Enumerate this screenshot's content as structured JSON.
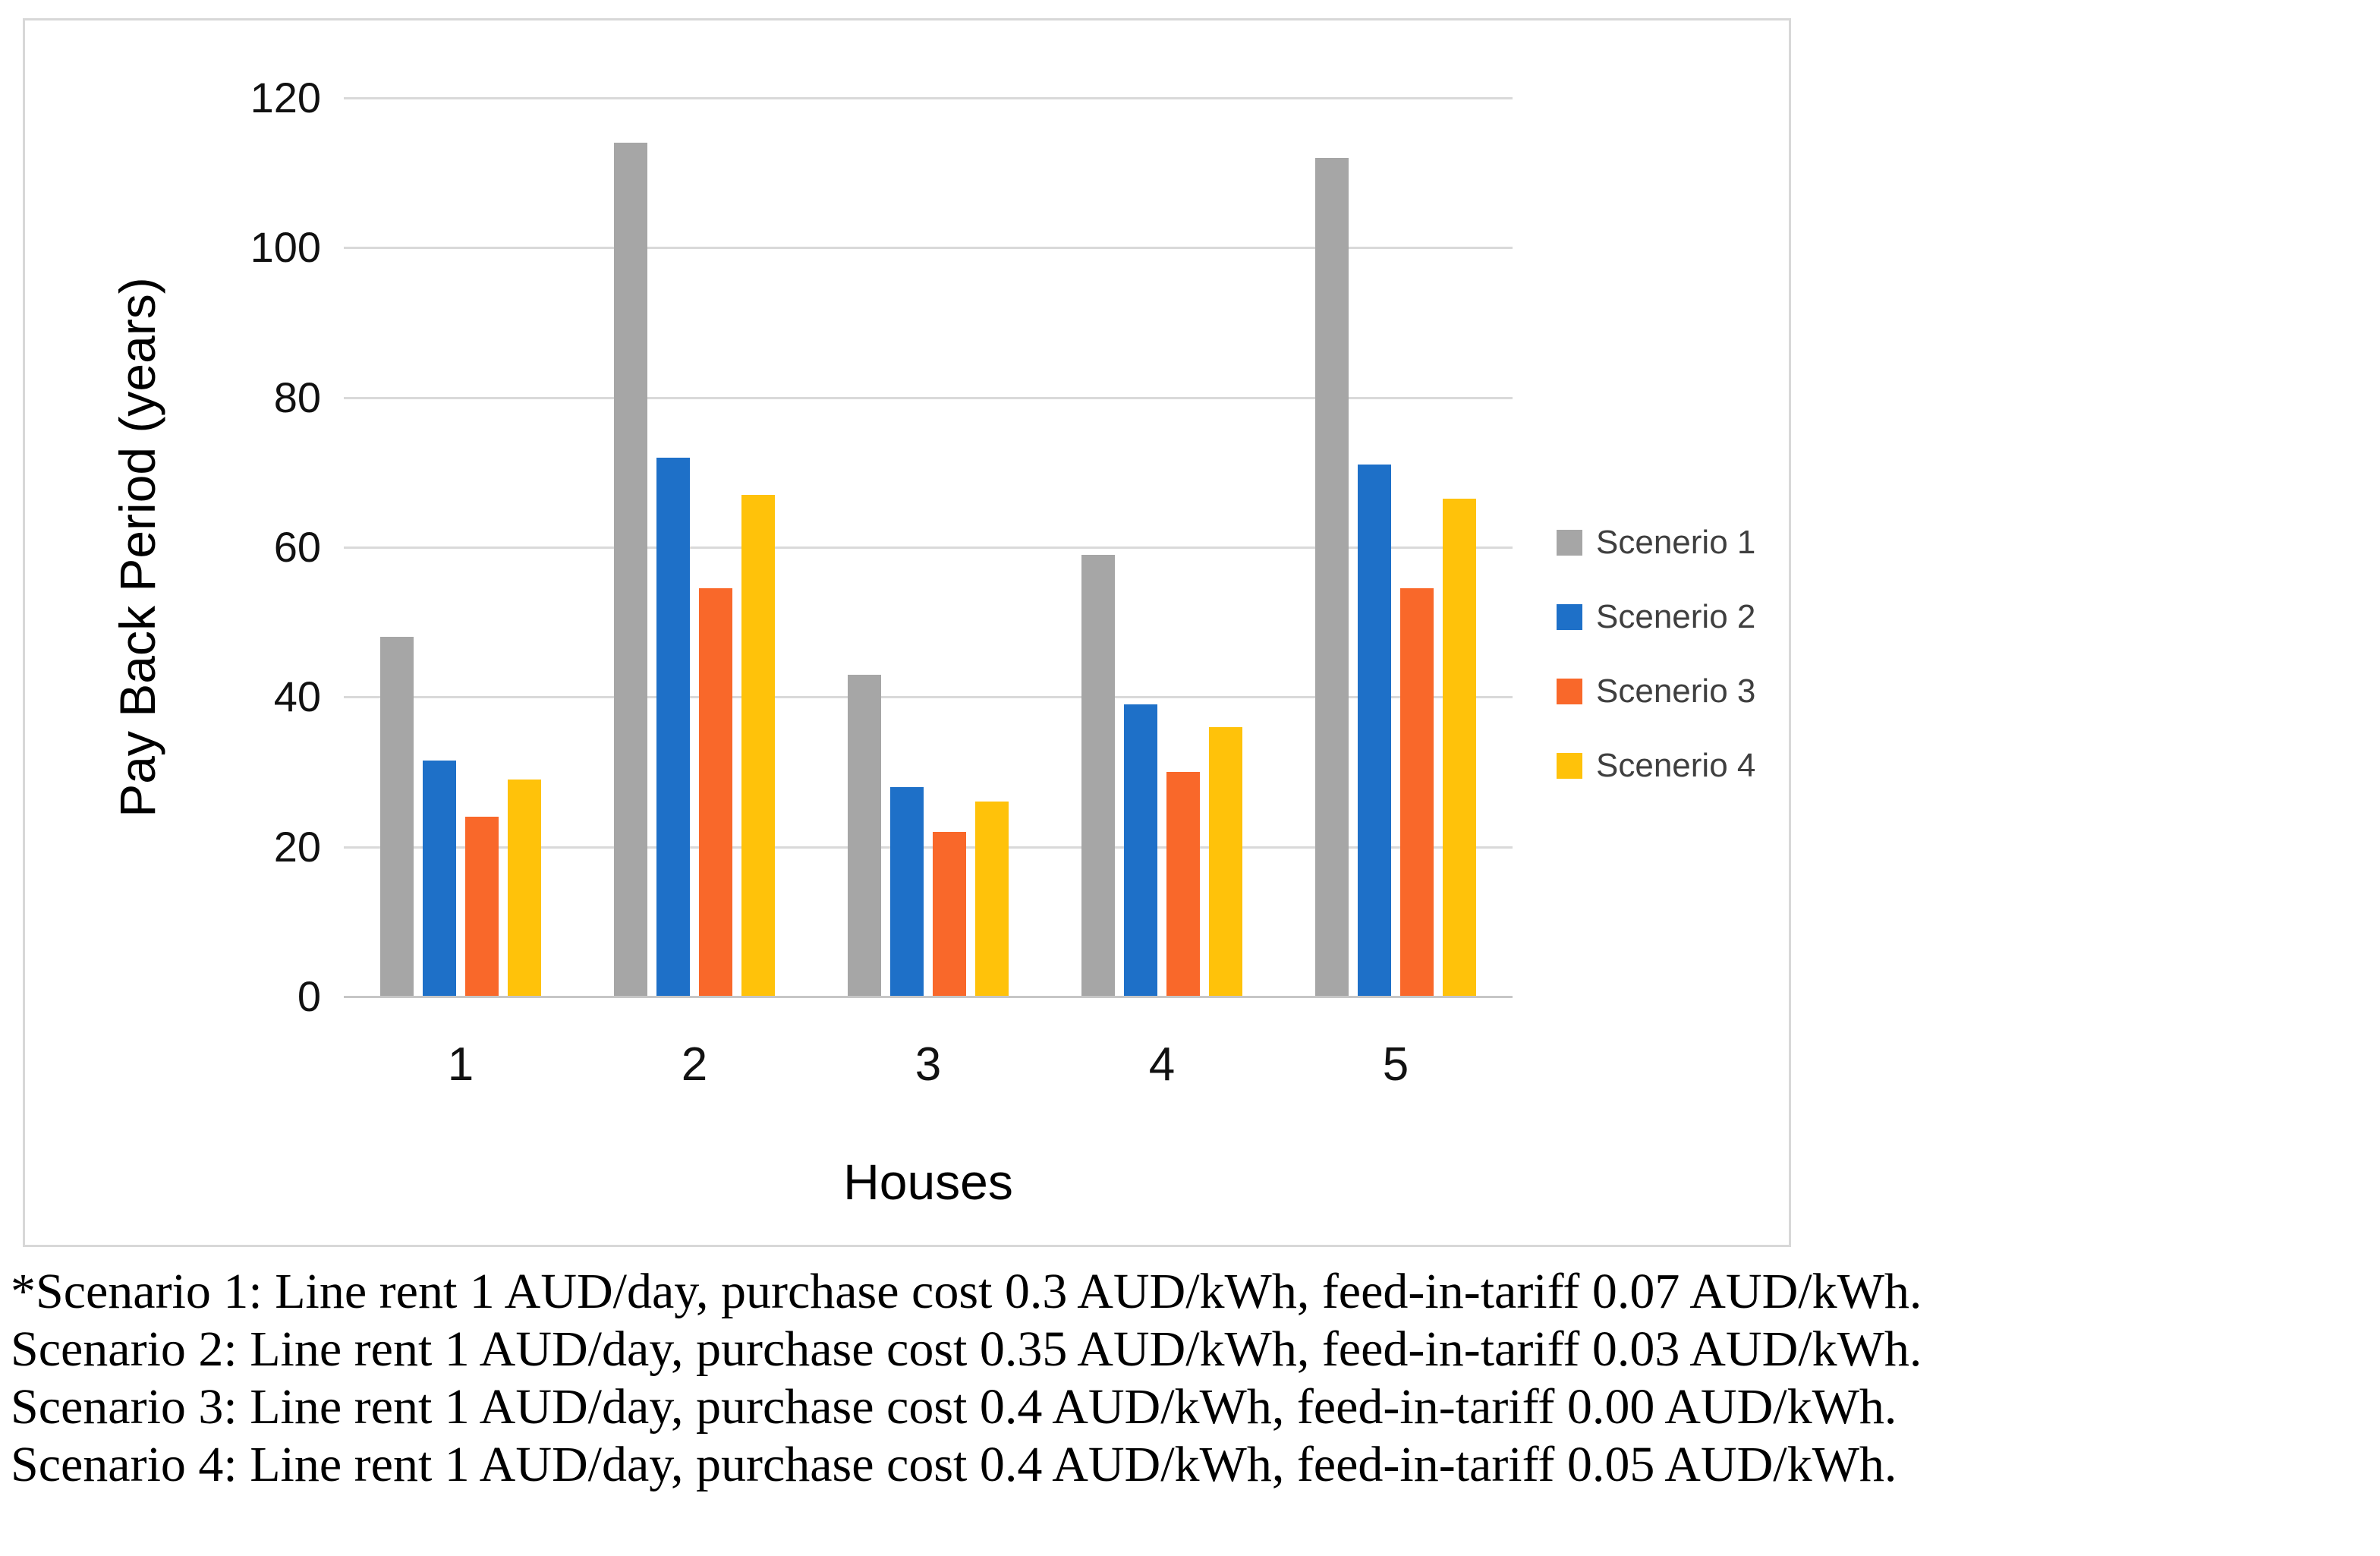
{
  "chart_data": {
    "type": "bar",
    "title": "",
    "categories": [
      "1",
      "2",
      "3",
      "4",
      "5"
    ],
    "series": [
      {
        "name": "Scenerio 1",
        "color": "#A6A6A6",
        "values": [
          48,
          114,
          43,
          59,
          112
        ]
      },
      {
        "name": "Scenerio 2",
        "color": "#1E70C8",
        "values": [
          31.5,
          72,
          28,
          39,
          71
        ]
      },
      {
        "name": "Scenerio 3",
        "color": "#F9682A",
        "values": [
          24,
          54.5,
          22,
          30,
          54.5
        ]
      },
      {
        "name": "Scenerio 4",
        "color": "#FFC20A",
        "values": [
          29,
          67,
          26,
          36,
          66.5
        ]
      }
    ],
    "xlabel": "Houses",
    "ylabel": "Pay Back Period (years)",
    "ylim": [
      0,
      120
    ],
    "yticks": [
      0,
      20,
      40,
      60,
      80,
      100,
      120
    ],
    "grid": true,
    "legend_position": "right"
  },
  "footnotes": [
    "*Scenario 1: Line rent 1 AUD/day, purchase cost 0.3 AUD/kWh, feed-in-tariff 0.07 AUD/kWh.",
    "Scenario 2: Line rent 1 AUD/day, purchase cost 0.35 AUD/kWh, feed-in-tariff 0.03 AUD/kWh.",
    "Scenario 3: Line rent 1 AUD/day, purchase cost 0.4 AUD/kWh, feed-in-tariff 0.00 AUD/kWh.",
    "Scenario 4: Line rent 1 AUD/day, purchase cost 0.4 AUD/kWh, feed-in-tariff 0.05 AUD/kWh."
  ]
}
